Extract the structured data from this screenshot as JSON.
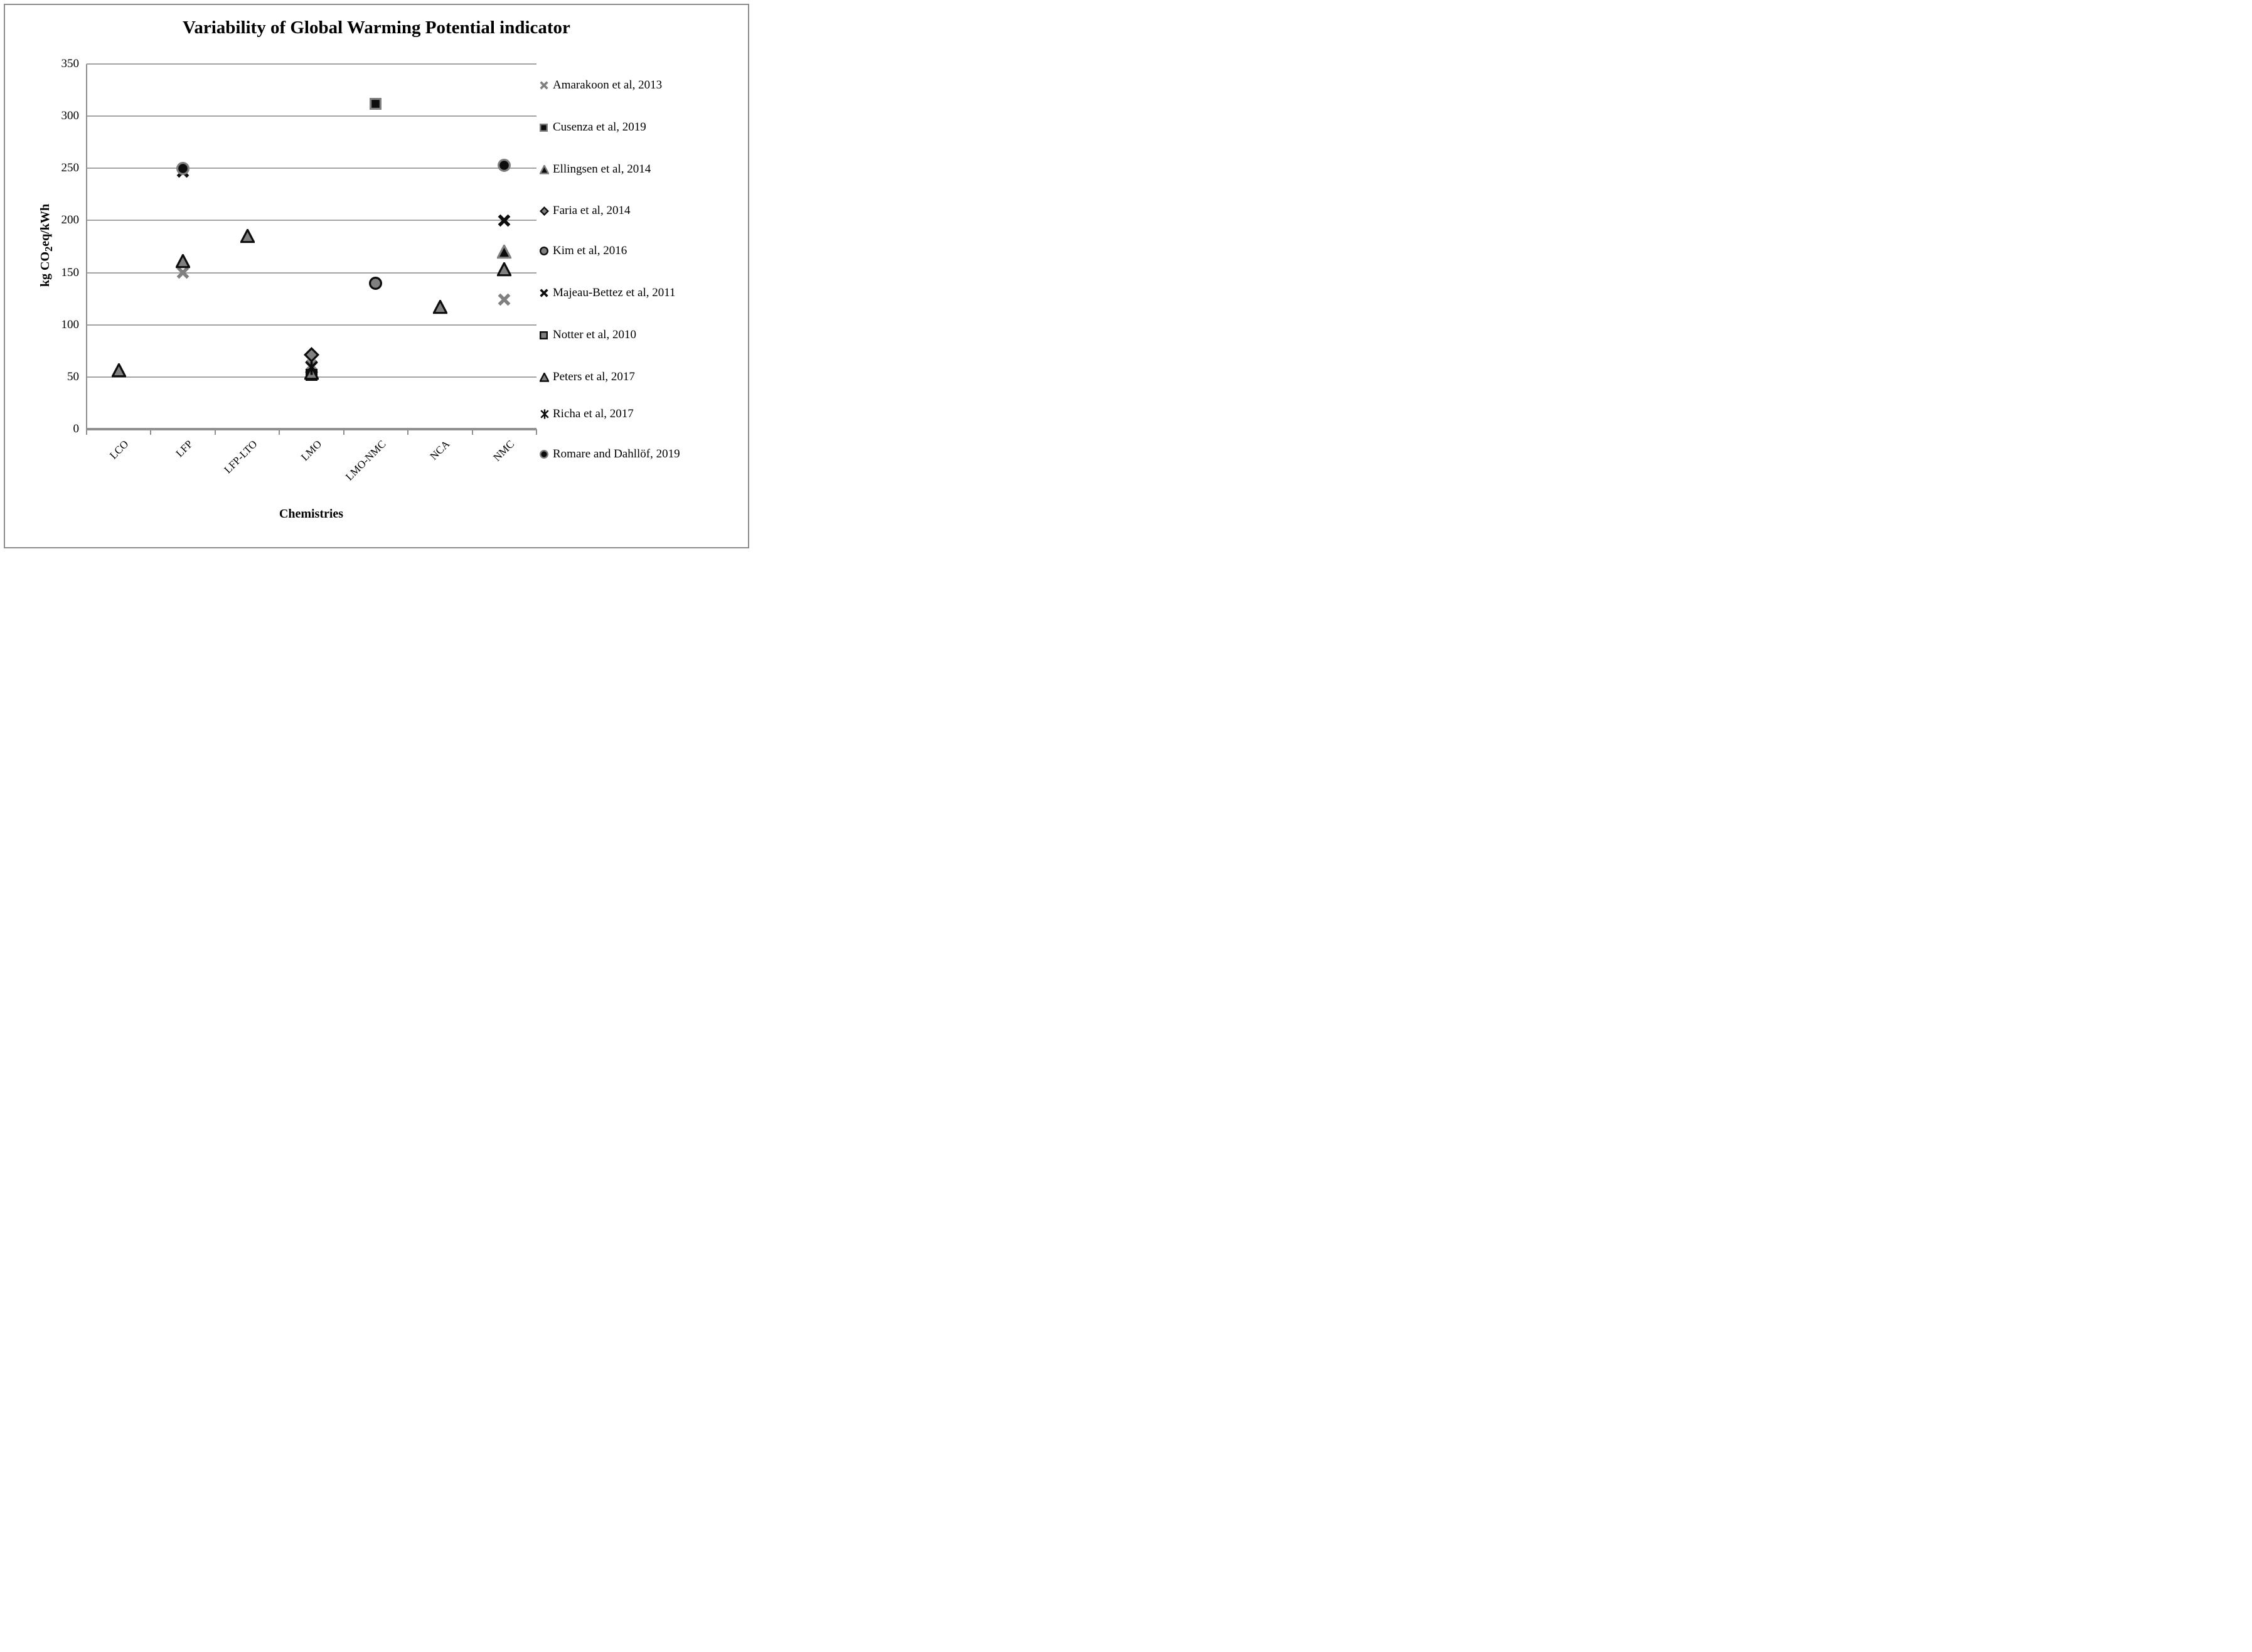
{
  "figure": {
    "title": "Variability of Global Warming Potential indicator",
    "x_axis_title": "Chemistries",
    "y_axis_title_pre": "kg CO",
    "y_axis_title_sub": "2",
    "y_axis_title_post": "eq/kWh"
  },
  "colors": {
    "marker_gray": "#808080",
    "marker_black": "#0d0d0d",
    "gridline": "#a3a3a3",
    "axis": "#8f8f8f",
    "figure_border": "#8c8c8c",
    "text": "#000000"
  },
  "chart_data": {
    "type": "scatter",
    "title": "Variability of Global Warming Potential indicator",
    "xlabel": "Chemistries",
    "ylabel": "kg CO2eq/kWh",
    "ylim": [
      0,
      350
    ],
    "yticks": [
      350,
      300,
      250,
      200,
      150,
      100,
      50,
      0
    ],
    "grid": true,
    "legend_position": "right",
    "categories": [
      "LCO",
      "LFP",
      "LFP-LTO",
      "LMO",
      "LMO-NMC",
      "NCA",
      "NMC"
    ],
    "series": [
      {
        "name": "Amarakoon et al, 2013",
        "marker": "x",
        "fill": "#808080",
        "stroke": "#808080",
        "points": [
          {
            "category": "LFP",
            "value": 150
          },
          {
            "category": "LMO",
            "value": 61
          },
          {
            "category": "NMC",
            "value": 124
          }
        ]
      },
      {
        "name": "Cusenza et al, 2019",
        "marker": "square",
        "fill": "#0d0d0d",
        "stroke": "#808080",
        "points": [
          {
            "category": "LMO-NMC",
            "value": 312
          }
        ]
      },
      {
        "name": "Ellingsen et al, 2014",
        "marker": "triangle",
        "fill": "#0d0d0d",
        "stroke": "#808080",
        "points": [
          {
            "category": "NMC",
            "value": 170
          }
        ]
      },
      {
        "name": "Faria et al, 2014",
        "marker": "diamond",
        "fill": "#808080",
        "stroke": "#0d0d0d",
        "points": [
          {
            "category": "LMO",
            "value": 71
          }
        ]
      },
      {
        "name": "Kim et al, 2016",
        "marker": "circle",
        "fill": "#808080",
        "stroke": "#0d0d0d",
        "points": [
          {
            "category": "LMO-NMC",
            "value": 140
          }
        ]
      },
      {
        "name": "Majeau-Bettez et al, 2011",
        "marker": "x",
        "fill": "#0d0d0d",
        "stroke": "#0d0d0d",
        "points": [
          {
            "category": "LFP",
            "value": 247
          },
          {
            "category": "NMC",
            "value": 200
          }
        ]
      },
      {
        "name": "Notter et al, 2010",
        "marker": "square",
        "fill": "#808080",
        "stroke": "#0d0d0d",
        "points": [
          {
            "category": "LMO",
            "value": 52
          }
        ]
      },
      {
        "name": "Peters et al, 2017",
        "marker": "triangle",
        "fill": "#808080",
        "stroke": "#0d0d0d",
        "points": [
          {
            "category": "LCO",
            "value": 56
          },
          {
            "category": "LFP",
            "value": 161
          },
          {
            "category": "LFP-LTO",
            "value": 185
          },
          {
            "category": "LMO",
            "value": 54
          },
          {
            "category": "NCA",
            "value": 117
          },
          {
            "category": "NMC",
            "value": 153
          }
        ]
      },
      {
        "name": "Richa et al, 2017",
        "marker": "asterisk",
        "fill": "#0d0d0d",
        "stroke": "#0d0d0d",
        "points": [
          {
            "category": "LMO",
            "value": 59
          }
        ]
      },
      {
        "name": "Romare and Dahllöf, 2019",
        "marker": "circle",
        "fill": "#0d0d0d",
        "stroke": "#808080",
        "points": [
          {
            "category": "LFP",
            "value": 250
          },
          {
            "category": "NMC",
            "value": 253
          }
        ]
      }
    ]
  }
}
